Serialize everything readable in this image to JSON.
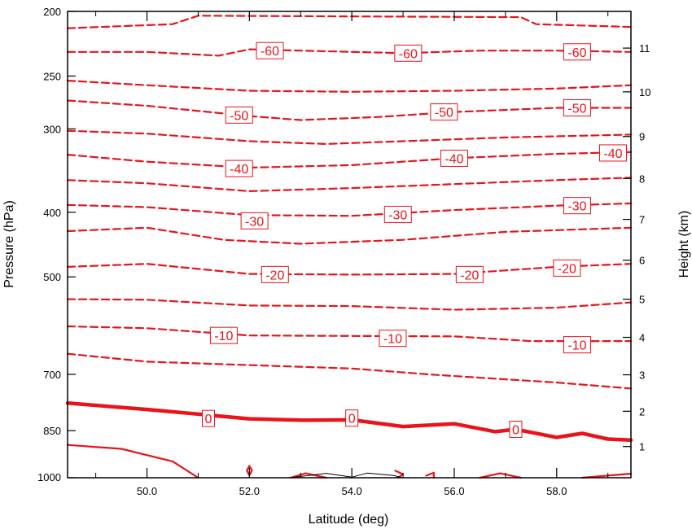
{
  "chart_data": {
    "type": "contour",
    "xlabel": "Latitude (deg)",
    "ylabel_left": "Pressure (hPa)",
    "ylabel_right": "Height (km)",
    "xlim": [
      48.45,
      59.45
    ],
    "ylim_pressure": [
      1000,
      200
    ],
    "y_scale": "log",
    "x_ticks": [
      {
        "value": 50.0,
        "label": "50.0"
      },
      {
        "value": 52.0,
        "label": "52.0"
      },
      {
        "value": 54.0,
        "label": "54.0"
      },
      {
        "value": 56.0,
        "label": "56.0"
      },
      {
        "value": 58.0,
        "label": "58.0"
      }
    ],
    "y_left_ticks": [
      {
        "value": 200,
        "label": "200"
      },
      {
        "value": 250,
        "label": "250"
      },
      {
        "value": 300,
        "label": "300"
      },
      {
        "value": 400,
        "label": "400"
      },
      {
        "value": 500,
        "label": "500"
      },
      {
        "value": 700,
        "label": "700"
      },
      {
        "value": 850,
        "label": "850"
      },
      {
        "value": 1000,
        "label": "1000"
      }
    ],
    "y_right_ticks": [
      {
        "pressure": 898,
        "label": "1"
      },
      {
        "pressure": 795,
        "label": "2"
      },
      {
        "pressure": 701,
        "label": "3"
      },
      {
        "pressure": 616,
        "label": "4"
      },
      {
        "pressure": 540,
        "label": "5"
      },
      {
        "pressure": 472,
        "label": "6"
      },
      {
        "pressure": 410,
        "label": "7"
      },
      {
        "pressure": 356,
        "label": "8"
      },
      {
        "pressure": 308,
        "label": "9"
      },
      {
        "pressure": 264,
        "label": "10"
      },
      {
        "pressure": 227,
        "label": "11"
      }
    ],
    "contour_color": "#e8131b",
    "minor_contour_color": "#000000",
    "contours": [
      {
        "level": -65,
        "style": "dashed",
        "points": [
          [
            48.45,
            212
          ],
          [
            50.5,
            209
          ],
          [
            51.0,
            203
          ],
          [
            57.3,
            204
          ],
          [
            57.6,
            209
          ],
          [
            59.45,
            211
          ]
        ]
      },
      {
        "level": -60,
        "style": "dashed",
        "points": [
          [
            48.45,
            230
          ],
          [
            50.0,
            230
          ],
          [
            51.4,
            233
          ],
          [
            52.0,
            228
          ],
          [
            53.0,
            229
          ],
          [
            55.0,
            231
          ],
          [
            56.5,
            229
          ],
          [
            58.0,
            229
          ],
          [
            59.45,
            230
          ]
        ],
        "labels": [
          {
            "text": "-60",
            "at": [
              52.4,
              229
            ]
          },
          {
            "text": "-60",
            "at": [
              55.1,
              231
            ]
          },
          {
            "text": "-60",
            "at": [
              58.4,
              230
            ]
          }
        ]
      },
      {
        "level": -55,
        "style": "dashed",
        "points": [
          [
            48.45,
            254
          ],
          [
            50.0,
            258
          ],
          [
            52.0,
            263
          ],
          [
            54.0,
            264
          ],
          [
            56.0,
            263
          ],
          [
            58.0,
            261
          ],
          [
            59.45,
            258
          ]
        ]
      },
      {
        "level": -50,
        "style": "dashed",
        "points": [
          [
            48.45,
            272
          ],
          [
            50.0,
            277
          ],
          [
            52.0,
            287
          ],
          [
            53.0,
            291
          ],
          [
            54.5,
            288
          ],
          [
            56.0,
            283
          ],
          [
            58.0,
            279
          ],
          [
            59.45,
            279
          ]
        ],
        "labels": [
          {
            "text": "-50",
            "at": [
              51.8,
              286
            ]
          },
          {
            "text": "-50",
            "at": [
              55.8,
              283
            ]
          },
          {
            "text": "-50",
            "at": [
              58.4,
              279
            ]
          }
        ]
      },
      {
        "level": -45,
        "style": "dashed",
        "points": [
          [
            48.45,
            302
          ],
          [
            50.0,
            305
          ],
          [
            52.0,
            313
          ],
          [
            53.5,
            316
          ],
          [
            55.0,
            313
          ],
          [
            57.0,
            309
          ],
          [
            59.45,
            306
          ]
        ]
      },
      {
        "level": -40,
        "style": "dashed",
        "points": [
          [
            48.45,
            328
          ],
          [
            50.0,
            336
          ],
          [
            52.0,
            343
          ],
          [
            54.0,
            340
          ],
          [
            56.0,
            332
          ],
          [
            58.0,
            327
          ],
          [
            59.45,
            325
          ]
        ],
        "labels": [
          {
            "text": "-40",
            "at": [
              51.8,
              344
            ]
          },
          {
            "text": "-40",
            "at": [
              56.0,
              332
            ]
          },
          {
            "text": "-40",
            "at": [
              59.1,
              326
            ]
          }
        ]
      },
      {
        "level": -35,
        "style": "dashed",
        "points": [
          [
            48.45,
            358
          ],
          [
            50.0,
            362
          ],
          [
            52.0,
            372
          ],
          [
            54.0,
            368
          ],
          [
            56.0,
            363
          ],
          [
            58.0,
            358
          ],
          [
            59.45,
            355
          ]
        ]
      },
      {
        "level": -30,
        "style": "dashed",
        "points": [
          [
            48.45,
            390
          ],
          [
            50.0,
            393
          ],
          [
            52.0,
            404
          ],
          [
            54.0,
            405
          ],
          [
            56.0,
            397
          ],
          [
            58.0,
            391
          ],
          [
            59.45,
            388
          ]
        ],
        "labels": [
          {
            "text": "-30",
            "at": [
              52.1,
              412
            ]
          },
          {
            "text": "-30",
            "at": [
              54.9,
              403
            ]
          },
          {
            "text": "-30",
            "at": [
              58.4,
              391
            ]
          }
        ]
      },
      {
        "level": -25,
        "style": "dashed",
        "points": [
          [
            48.45,
            427
          ],
          [
            50.0,
            422
          ],
          [
            51.5,
            440
          ],
          [
            53.0,
            446
          ],
          [
            55.0,
            440
          ],
          [
            57.0,
            428
          ],
          [
            59.45,
            422
          ]
        ]
      },
      {
        "level": -20,
        "style": "dashed",
        "points": [
          [
            48.45,
            483
          ],
          [
            50.0,
            478
          ],
          [
            52.0,
            495
          ],
          [
            54.0,
            496
          ],
          [
            56.0,
            495
          ],
          [
            58.0,
            483
          ],
          [
            59.45,
            478
          ]
        ],
        "labels": [
          {
            "text": "-20",
            "at": [
              52.5,
              496
            ]
          },
          {
            "text": "-20",
            "at": [
              56.3,
              496
            ]
          },
          {
            "text": "-20",
            "at": [
              58.2,
              485
            ]
          }
        ]
      },
      {
        "level": -15,
        "style": "dashed",
        "points": [
          [
            48.45,
            540
          ],
          [
            50.0,
            541
          ],
          [
            52.0,
            552
          ],
          [
            54.0,
            553
          ],
          [
            56.0,
            560
          ],
          [
            58.0,
            556
          ],
          [
            59.45,
            546
          ]
        ]
      },
      {
        "level": -10,
        "style": "dashed",
        "points": [
          [
            48.45,
            593
          ],
          [
            50.0,
            597
          ],
          [
            52.0,
            612
          ],
          [
            54.0,
            613
          ],
          [
            56.0,
            614
          ],
          [
            57.5,
            624
          ],
          [
            59.45,
            624
          ]
        ],
        "labels": [
          {
            "text": "-10",
            "at": [
              51.5,
              612
            ]
          },
          {
            "text": "-10",
            "at": [
              54.8,
              618
            ]
          },
          {
            "text": "-10",
            "at": [
              58.4,
              632
            ]
          }
        ]
      },
      {
        "level": -5,
        "style": "dashed",
        "points": [
          [
            48.45,
            652
          ],
          [
            50.0,
            670
          ],
          [
            52.0,
            678
          ],
          [
            54.0,
            686
          ],
          [
            55.5,
            700
          ],
          [
            57.0,
            712
          ],
          [
            58.0,
            720
          ],
          [
            59.45,
            735
          ]
        ]
      },
      {
        "level": 0,
        "style": "thick",
        "points": [
          [
            48.45,
            773
          ],
          [
            50.0,
            790
          ],
          [
            52.0,
            816
          ],
          [
            53.0,
            820
          ],
          [
            54.0,
            819
          ],
          [
            55.0,
            838
          ],
          [
            56.0,
            830
          ],
          [
            56.8,
            853
          ],
          [
            57.2,
            846
          ],
          [
            58.0,
            870
          ],
          [
            58.5,
            858
          ],
          [
            59.0,
            875
          ],
          [
            59.45,
            878
          ]
        ],
        "labels": [
          {
            "text": "0",
            "at": [
              51.2,
              815
            ]
          },
          {
            "text": "0",
            "at": [
              54.0,
              814
            ]
          },
          {
            "text": "0",
            "at": [
              57.2,
              846
            ]
          }
        ]
      },
      {
        "level": 5,
        "style": "solid",
        "points": [
          [
            48.45,
            893
          ],
          [
            49.5,
            905
          ],
          [
            50.5,
            945
          ],
          [
            51.0,
            1000
          ]
        ]
      },
      {
        "level": 5,
        "style": "solid",
        "points": [
          [
            59.45,
            986
          ],
          [
            58.5,
            1000
          ]
        ]
      },
      {
        "level": 5,
        "style": "closed",
        "points": [
          [
            52.0,
            960
          ],
          [
            52.05,
            975
          ],
          [
            52.0,
            992
          ],
          [
            51.95,
            975
          ],
          [
            52.0,
            960
          ]
        ]
      },
      {
        "level": 5,
        "style": "closed",
        "points": [
          [
            52.8,
            1000
          ],
          [
            53.1,
            985
          ],
          [
            53.5,
            1000
          ]
        ]
      },
      {
        "level": 5,
        "style": "closed",
        "points": [
          [
            54.85,
            976
          ],
          [
            55.0,
            988
          ],
          [
            54.9,
            1000
          ]
        ]
      },
      {
        "level": 5,
        "style": "closed",
        "points": [
          [
            55.45,
            993
          ],
          [
            55.6,
            983
          ],
          [
            55.6,
            1000
          ]
        ]
      },
      {
        "level": 5,
        "style": "closed",
        "points": [
          [
            56.5,
            1000
          ],
          [
            56.9,
            985
          ],
          [
            57.3,
            1000
          ]
        ]
      },
      {
        "level": 10,
        "style": "thin-black",
        "points": [
          [
            52.8,
            1000
          ],
          [
            53.5,
            985
          ],
          [
            54.0,
            998
          ],
          [
            54.3,
            984
          ],
          [
            54.8,
            992
          ],
          [
            55.0,
            1000
          ]
        ]
      }
    ]
  }
}
